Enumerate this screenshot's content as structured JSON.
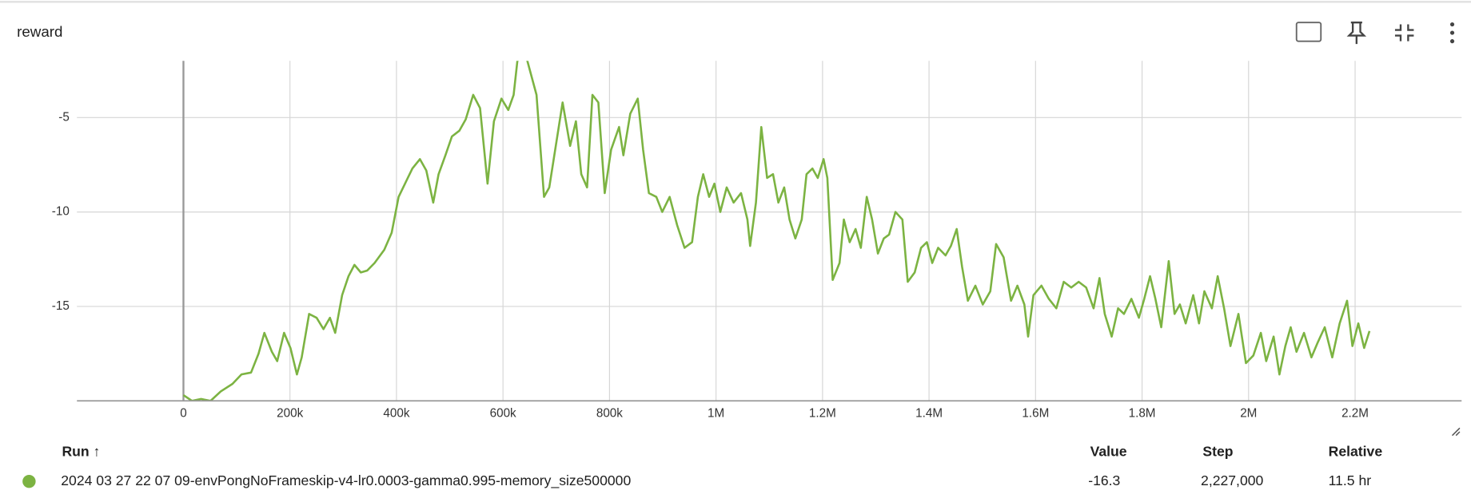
{
  "chart_data": {
    "type": "line",
    "title": "reward",
    "x": [
      0,
      16000,
      33000,
      51000,
      70000,
      92000,
      109000,
      127000,
      141000,
      152000,
      166000,
      176000,
      189000,
      201000,
      213000,
      222000,
      236000,
      250000,
      263000,
      275000,
      285000,
      298000,
      310000,
      321000,
      333000,
      345000,
      359000,
      377000,
      391000,
      404000,
      416000,
      430000,
      444000,
      456000,
      469000,
      479000,
      492000,
      504000,
      518000,
      530000,
      544000,
      557000,
      571000,
      583000,
      597000,
      610000,
      620000,
      627000,
      641000,
      663000,
      677000,
      687000,
      698000,
      712000,
      726000,
      737000,
      747000,
      758000,
      768000,
      779000,
      791000,
      803000,
      818000,
      826000,
      839000,
      853000,
      863000,
      874000,
      888000,
      899000,
      913000,
      927000,
      941000,
      955000,
      966000,
      976000,
      987000,
      997000,
      1008000,
      1020000,
      1033000,
      1047000,
      1059000,
      1064000,
      1075000,
      1085000,
      1096000,
      1107000,
      1117000,
      1128000,
      1138000,
      1149000,
      1161000,
      1170000,
      1181000,
      1191000,
      1202000,
      1209000,
      1219000,
      1232000,
      1240000,
      1251000,
      1262000,
      1272000,
      1283000,
      1293000,
      1304000,
      1315000,
      1325000,
      1337000,
      1350000,
      1360000,
      1373000,
      1385000,
      1396000,
      1406000,
      1417000,
      1431000,
      1441000,
      1452000,
      1462000,
      1473000,
      1487000,
      1501000,
      1515000,
      1526000,
      1540000,
      1554000,
      1566000,
      1579000,
      1586000,
      1596000,
      1611000,
      1625000,
      1639000,
      1653000,
      1667000,
      1681000,
      1695000,
      1709000,
      1720000,
      1730000,
      1743000,
      1755000,
      1766000,
      1780000,
      1794000,
      1804000,
      1815000,
      1825000,
      1836000,
      1850000,
      1861000,
      1871000,
      1882000,
      1896000,
      1907000,
      1917000,
      1931000,
      1942000,
      1954000,
      1966000,
      1981000,
      1995000,
      2009000,
      2023000,
      2033000,
      2047000,
      2058000,
      2069000,
      2079000,
      2090000,
      2104000,
      2118000,
      2130000,
      2143000,
      2157000,
      2171000,
      2185000,
      2195000,
      2206000,
      2217000,
      2227000
    ],
    "series": [
      {
        "name": "2024 03 27 22 07 09-envPongNoFrameskip-v4-lr0.0003-gamma0.995-memory_size500000",
        "color": "#7cb342",
        "values": [
          -19.7,
          -20,
          -19.9,
          -20,
          -19.5,
          -19.1,
          -18.6,
          -18.5,
          -17.5,
          -16.4,
          -17.4,
          -17.9,
          -16.4,
          -17.2,
          -18.6,
          -17.7,
          -15.4,
          -15.6,
          -16.2,
          -15.6,
          -16.4,
          -14.4,
          -13.4,
          -12.8,
          -13.2,
          -13.1,
          -12.7,
          -12,
          -11.1,
          -9.2,
          -8.5,
          -7.7,
          -7.2,
          -7.8,
          -9.5,
          -8,
          -7,
          -6,
          -5.7,
          -5.1,
          -3.8,
          -4.5,
          -8.5,
          -5.2,
          -4,
          -4.6,
          -3.8,
          -2,
          -1.5,
          -3.8,
          -9.2,
          -8.7,
          -6.7,
          -4.2,
          -6.5,
          -5.2,
          -8,
          -8.7,
          -3.8,
          -4.2,
          -9,
          -6.7,
          -5.5,
          -7,
          -4.8,
          -4,
          -6.7,
          -9,
          -9.2,
          -10,
          -9.2,
          -10.7,
          -11.9,
          -11.6,
          -9.2,
          -8,
          -9.2,
          -8.5,
          -10,
          -8.7,
          -9.5,
          -9,
          -10.4,
          -11.8,
          -9.5,
          -5.5,
          -8.2,
          -8,
          -9.5,
          -8.7,
          -10.4,
          -11.4,
          -10.4,
          -8,
          -7.7,
          -8.2,
          -7.2,
          -8.2,
          -13.6,
          -12.7,
          -10.4,
          -11.6,
          -10.9,
          -11.9,
          -9.2,
          -10.4,
          -12.2,
          -11.4,
          -11.2,
          -10,
          -10.4,
          -13.7,
          -13.2,
          -11.9,
          -11.6,
          -12.7,
          -11.9,
          -12.3,
          -11.8,
          -10.9,
          -12.9,
          -14.7,
          -13.9,
          -14.9,
          -14.2,
          -11.7,
          -12.4,
          -14.7,
          -13.9,
          -14.9,
          -16.6,
          -14.4,
          -13.9,
          -14.6,
          -15.1,
          -13.7,
          -14,
          -13.7,
          -14,
          -15.1,
          -13.5,
          -15.4,
          -16.6,
          -15.1,
          -15.4,
          -14.6,
          -15.6,
          -14.6,
          -13.4,
          -14.6,
          -16.1,
          -12.6,
          -15.4,
          -14.9,
          -15.9,
          -14.4,
          -15.9,
          -14.2,
          -15.1,
          -13.4,
          -15.1,
          -17.1,
          -15.4,
          -18,
          -17.6,
          -16.4,
          -17.9,
          -16.6,
          -18.6,
          -17.1,
          -16.1,
          -17.4,
          -16.4,
          -17.7,
          -16.9,
          -16.1,
          -17.7,
          -15.9,
          -14.7,
          -17.1,
          -15.9,
          -17.2,
          -16.3
        ]
      }
    ],
    "xlim": [
      -200000,
      2400000
    ],
    "ylim": [
      -20,
      -2
    ],
    "xticks": [
      0,
      {
        "value": 200000,
        "label": "200k"
      },
      {
        "value": 400000,
        "label": "400k"
      },
      {
        "value": 600000,
        "label": "600k"
      },
      {
        "value": 800000,
        "label": "800k"
      },
      {
        "value": 1000000,
        "label": "1M"
      },
      {
        "value": 1200000,
        "label": "1.2M"
      },
      {
        "value": 1400000,
        "label": "1.4M"
      },
      {
        "value": 1600000,
        "label": "1.6M"
      },
      {
        "value": 1800000,
        "label": "1.8M"
      },
      {
        "value": 2000000,
        "label": "2M"
      },
      {
        "value": 2200000,
        "label": "2.2M"
      }
    ],
    "yticks": [
      -15,
      -10,
      -5
    ],
    "grid": true
  },
  "table": {
    "headers": [
      "Run ↑",
      "Value",
      "Step",
      "Relative"
    ],
    "rows": [
      [
        "-16.3",
        "2,227,000",
        "11.5 hr"
      ]
    ]
  }
}
